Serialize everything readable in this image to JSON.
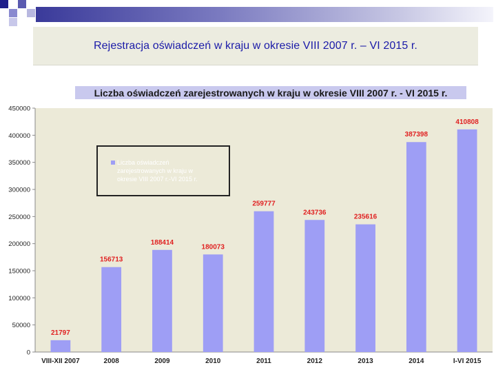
{
  "slide": {
    "title": "Rejestracja oświadczeń  w kraju w okresie VIII 2007 r. – VI 2015 r."
  },
  "colors": {
    "title_text": "#1a1aa8",
    "bar_fill": "#9e9ef5",
    "plot_background": "#ecead8",
    "data_label": "#e02020",
    "chart_title_band": "#c9c9ee"
  },
  "chart_data": {
    "type": "bar",
    "title": "Liczba oświadczeń zarejestrowanych w kraju w okresie VIII 2007 r. - VI 2015 r.",
    "categories": [
      "VIII-XII 2007",
      "2008",
      "2009",
      "2010",
      "2011",
      "2012",
      "2013",
      "2014",
      "I-VI 2015"
    ],
    "series": [
      {
        "name": "Liczba oświadczeń zarejestrowanych w kraju w okresie VIII 2007 r.-VI 2015 r.",
        "values": [
          21797,
          156713,
          188414,
          180073,
          259777,
          243736,
          235616,
          387398,
          410808
        ]
      }
    ],
    "data_labels": [
      "21797",
      "156713",
      "188414",
      "180073",
      "259777",
      "243736",
      "235616",
      "387398",
      "410808"
    ],
    "yticks": [
      "0",
      "50000",
      "100000",
      "150000",
      "200000",
      "250000",
      "300000",
      "350000",
      "400000",
      "450000"
    ],
    "ylim": [
      0,
      450000
    ],
    "xlabel": "",
    "ylabel": "",
    "legend_position": "top-left",
    "grid": false
  }
}
